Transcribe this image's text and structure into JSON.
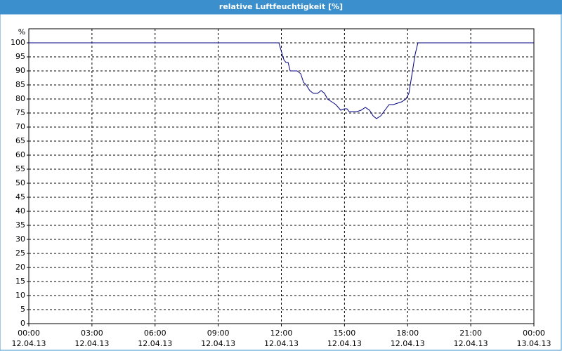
{
  "chart_data": {
    "type": "line",
    "title": "relative Luftfeuchtigkeit [%]",
    "y_label": "%",
    "xlim": [
      0,
      24
    ],
    "ylim": [
      0,
      100
    ],
    "xticks": [
      {
        "value": 0,
        "label": "00:00"
      },
      {
        "value": 3,
        "label": "03:00"
      },
      {
        "value": 6,
        "label": "06:00"
      },
      {
        "value": 9,
        "label": "09:00"
      },
      {
        "value": 12,
        "label": "12:00"
      },
      {
        "value": 15,
        "label": "15:00"
      },
      {
        "value": 18,
        "label": "18:00"
      },
      {
        "value": 21,
        "label": "21:00"
      },
      {
        "value": 24,
        "label": "00:00"
      }
    ],
    "xtick_dates": [
      "12.04.13",
      "12.04.13",
      "12.04.13",
      "12.04.13",
      "12.04.13",
      "12.04.13",
      "12.04.13",
      "12.04.13",
      "13.04.13"
    ],
    "yticks": [
      0,
      5,
      10,
      15,
      20,
      25,
      30,
      35,
      40,
      45,
      50,
      55,
      60,
      65,
      70,
      75,
      80,
      85,
      90,
      95,
      100
    ],
    "grid": true,
    "series": [
      {
        "color": "#000080",
        "x": [
          0,
          11.88,
          12.02,
          12.12,
          12.22,
          12.32,
          12.42,
          12.58,
          12.75,
          12.92,
          13.05,
          13.18,
          13.35,
          13.52,
          13.72,
          13.89,
          14.05,
          14.19,
          14.39,
          14.59,
          14.82,
          14.99,
          15.12,
          15.22,
          15.39,
          15.59,
          15.79,
          15.99,
          16.19,
          16.36,
          16.52,
          16.72,
          16.92,
          17.12,
          17.32,
          17.52,
          17.72,
          17.92,
          18.06,
          18.19,
          18.36,
          18.49,
          24
        ],
        "values": [
          100,
          100,
          96.5,
          94,
          93,
          93,
          90,
          90,
          90,
          89,
          86,
          85,
          83,
          82,
          82,
          83,
          82,
          80,
          79,
          78,
          76,
          76.5,
          76.5,
          75.5,
          75.5,
          75.5,
          76,
          77,
          76,
          74,
          73,
          74,
          76,
          78,
          78,
          78.5,
          79,
          80,
          82,
          88,
          96,
          100,
          100
        ]
      }
    ]
  }
}
